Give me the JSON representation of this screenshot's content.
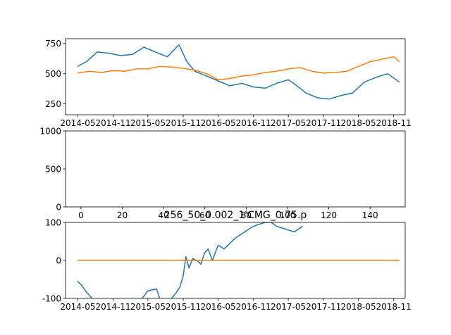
{
  "chart_data": [
    {
      "type": "line",
      "title": "",
      "xlabel": "",
      "ylabel": "",
      "x_ticks": [
        "2014-05",
        "2014-11",
        "2015-05",
        "2015-11",
        "2016-05",
        "2016-11",
        "2017-05",
        "2017-11",
        "2018-05",
        "2018-11"
      ],
      "y_ticks": [
        250,
        500,
        750
      ],
      "xlim": [
        "2014-02-26",
        "2018-12-31"
      ],
      "ylim": [
        160,
        790
      ],
      "series": [
        {
          "color": "#1f77b4",
          "x": [
            "2014-04-29",
            "2014-06-15",
            "2014-08-10",
            "2014-10-10",
            "2014-12-10",
            "2015-02-10",
            "2015-04-10",
            "2015-06-10",
            "2015-08-10",
            "2015-10-10",
            "2015-11-20",
            "2016-01-01",
            "2016-03-01",
            "2016-05-01",
            "2016-07-01",
            "2016-09-01",
            "2016-11-01",
            "2017-01-01",
            "2017-03-01",
            "2017-05-01",
            "2017-06-15",
            "2017-08-01",
            "2017-10-01",
            "2017-12-01",
            "2018-02-01",
            "2018-04-01",
            "2018-06-01",
            "2018-08-01",
            "2018-10-01",
            "2018-12-01"
          ],
          "values": [
            560,
            600,
            680,
            670,
            650,
            660,
            720,
            680,
            640,
            740,
            600,
            520,
            480,
            440,
            400,
            420,
            390,
            380,
            420,
            450,
            400,
            340,
            300,
            290,
            320,
            340,
            430,
            470,
            500,
            430
          ]
        },
        {
          "color": "#ff7f0e",
          "x": [
            "2014-04-29",
            "2014-07-01",
            "2014-09-01",
            "2014-11-01",
            "2015-01-01",
            "2015-03-01",
            "2015-05-01",
            "2015-07-01",
            "2015-09-01",
            "2015-11-01",
            "2016-01-01",
            "2016-03-01",
            "2016-05-01",
            "2016-07-01",
            "2016-09-01",
            "2016-11-01",
            "2017-01-01",
            "2017-03-01",
            "2017-05-01",
            "2017-07-01",
            "2017-09-01",
            "2017-11-01",
            "2018-01-01",
            "2018-03-01",
            "2018-05-01",
            "2018-07-01",
            "2018-09-01",
            "2018-11-01",
            "2018-12-01"
          ],
          "values": [
            505,
            520,
            510,
            525,
            520,
            540,
            540,
            560,
            555,
            545,
            530,
            500,
            450,
            460,
            480,
            490,
            510,
            520,
            540,
            550,
            520,
            505,
            510,
            520,
            560,
            600,
            620,
            640,
            600
          ]
        }
      ]
    },
    {
      "type": "line",
      "title": "",
      "xlabel": "",
      "ylabel": "",
      "x_ticks": [
        0,
        20,
        40,
        60,
        80,
        100,
        120,
        140
      ],
      "y_ticks": [
        0,
        500,
        1000
      ],
      "xlim": [
        -7.5,
        157
      ],
      "ylim": [
        0,
        1000
      ],
      "series": []
    },
    {
      "type": "line",
      "title": "256_50_0.002_1'CMG_0.75.p",
      "xlabel": "",
      "ylabel": "",
      "x_ticks": [
        "2014-05",
        "2014-11",
        "2015-05",
        "2015-11",
        "2016-05",
        "2016-11",
        "2017-05",
        "2017-11",
        "2018-05",
        "2018-11"
      ],
      "y_ticks": [
        -100,
        0,
        100
      ],
      "xlim": [
        "2014-02-26",
        "2018-12-31"
      ],
      "ylim": [
        -100,
        100
      ],
      "series": [
        {
          "color": "#1f77b4",
          "x": [
            "2014-04-29",
            "2014-05-20",
            "2014-06-10",
            "2014-07-05",
            "2014-07-15"
          ],
          "values": [
            -55,
            -65,
            -80,
            -95,
            -100
          ]
        },
        {
          "color": "#1f77b4",
          "x": [
            "2015-04-01",
            "2015-05-01",
            "2015-06-15",
            "2015-07-01"
          ],
          "values": [
            -100,
            -80,
            -75,
            -100
          ]
        },
        {
          "color": "#1f77b4",
          "x": [
            "2015-09-01",
            "2015-09-25",
            "2015-10-15",
            "2015-11-01",
            "2015-11-15",
            "2015-12-01",
            "2015-12-20",
            "2016-01-10",
            "2016-02-01",
            "2016-02-20",
            "2016-03-10",
            "2016-04-01",
            "2016-05-01",
            "2016-06-01",
            "2016-07-01",
            "2016-08-01",
            "2016-09-01",
            "2016-10-01",
            "2016-11-01",
            "2016-12-01",
            "2017-01-01",
            "2017-02-01",
            "2017-03-01",
            "2017-04-01",
            "2017-05-01",
            "2017-06-01",
            "2017-07-01",
            "2017-07-15"
          ],
          "values": [
            -100,
            -85,
            -70,
            -40,
            10,
            -20,
            5,
            0,
            -10,
            20,
            30,
            0,
            40,
            30,
            45,
            60,
            70,
            80,
            90,
            95,
            100,
            100,
            90,
            85,
            80,
            75,
            85,
            90
          ]
        },
        {
          "color": "#ff7f0e",
          "x": [
            "2014-04-29",
            "2018-12-01"
          ],
          "values": [
            0,
            0
          ]
        }
      ]
    }
  ]
}
